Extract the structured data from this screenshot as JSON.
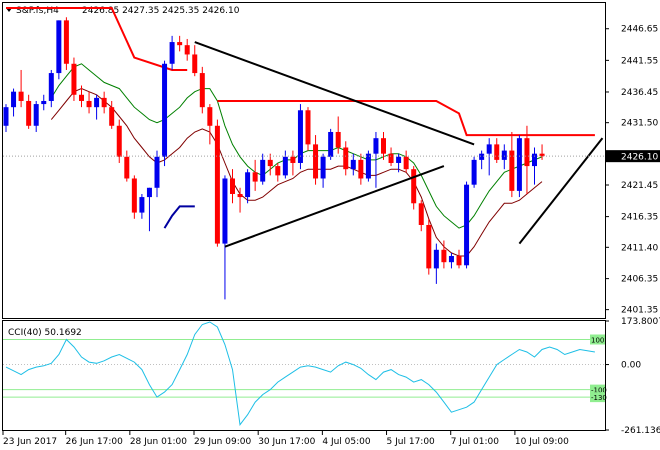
{
  "header": {
    "symbol": "S&P.fs,H4",
    "ohlc": "2426.85 2427.35 2425.35 2426.10"
  },
  "cci_panel": {
    "label": "CCI(40) 50.1692",
    "tick_labels": [
      "173.8007",
      "0.00",
      "-261.1364"
    ],
    "level_markers": [
      "100",
      "-100",
      "-130"
    ]
  },
  "colors": {
    "bull": "#0000ee",
    "bear": "#ff0000",
    "ma_green": "#008000",
    "ma_maroon": "#800000",
    "resistance": "#ff0000",
    "trendline": "#000000",
    "cci": "#1ebfe6",
    "cci_level": "#90ee90",
    "last_price_tag": "#000000"
  },
  "chart_data": [
    {
      "type": "candlestick",
      "title": "S&P.fs,H4",
      "x_ticks": [
        "23 Jun 2017",
        "26 Jun 17:00",
        "28 Jun 01:00",
        "29 Jun 09:00",
        "30 Jun 17:00",
        "4 Jul 05:00",
        "5 Jul 17:00",
        "7 Jul 01:00",
        "10 Jul 09:00"
      ],
      "y_ticks": [
        2401.35,
        2406.35,
        2411.4,
        2416.35,
        2421.45,
        2426.45,
        2431.5,
        2436.45,
        2441.55,
        2446.65
      ],
      "y_tick_labels": [
        "2401.35",
        "2406.35",
        "2411.40",
        "2416.35",
        "2421.45",
        "2426.45",
        "2431.50",
        "2436.45",
        "2441.55",
        "2446.65"
      ],
      "ylim": [
        2400.0,
        2450.8
      ],
      "grid": false,
      "last_price": 2426.1,
      "last_price_label": "2426.10",
      "candles": [
        [
          2431.0,
          2434.5,
          2430.0,
          2434.0
        ],
        [
          2434.0,
          2437.0,
          2432.5,
          2436.5
        ],
        [
          2436.5,
          2440.0,
          2434.0,
          2435.0
        ],
        [
          2435.0,
          2436.0,
          2430.5,
          2431.0
        ],
        [
          2431.0,
          2435.0,
          2430.0,
          2434.5
        ],
        [
          2434.5,
          2436.0,
          2433.5,
          2435.0
        ],
        [
          2435.0,
          2440.0,
          2434.0,
          2439.5
        ],
        [
          2439.5,
          2448.0,
          2438.5,
          2448.0
        ],
        [
          2448.0,
          2448.5,
          2440.0,
          2441.0
        ],
        [
          2441.0,
          2442.0,
          2435.0,
          2436.0
        ],
        [
          2436.0,
          2437.5,
          2434.0,
          2435.0
        ],
        [
          2435.0,
          2436.5,
          2433.0,
          2434.0
        ],
        [
          2434.0,
          2436.0,
          2432.0,
          2435.5
        ],
        [
          2435.5,
          2436.5,
          2433.0,
          2434.0
        ],
        [
          2434.0,
          2435.0,
          2430.5,
          2431.0
        ],
        [
          2431.0,
          2432.0,
          2425.0,
          2426.0
        ],
        [
          2426.0,
          2427.0,
          2422.0,
          2422.5
        ],
        [
          2422.5,
          2423.0,
          2416.0,
          2417.0
        ],
        [
          2417.0,
          2420.0,
          2416.0,
          2419.5
        ],
        [
          2419.5,
          2421.0,
          2414.0,
          2421.0
        ],
        [
          2421.0,
          2427.0,
          2419.5,
          2426.0
        ],
        [
          2426.0,
          2441.5,
          2424.5,
          2441.0
        ],
        [
          2441.0,
          2445.5,
          2440.0,
          2444.5
        ],
        [
          2444.5,
          2445.5,
          2443.0,
          2444.0
        ],
        [
          2444.0,
          2445.0,
          2441.5,
          2442.5
        ],
        [
          2442.5,
          2444.0,
          2439.0,
          2439.5
        ],
        [
          2439.5,
          2440.5,
          2433.0,
          2434.0
        ],
        [
          2434.0,
          2434.5,
          2428.0,
          2431.0
        ],
        [
          2431.0,
          2432.0,
          2411.5,
          2412.0
        ],
        [
          2412.0,
          2423.0,
          2403.0,
          2422.5
        ],
        [
          2422.5,
          2424.0,
          2418.5,
          2420.0
        ],
        [
          2420.0,
          2421.0,
          2417.0,
          2419.5
        ],
        [
          2419.5,
          2424.0,
          2418.5,
          2423.5
        ],
        [
          2423.5,
          2425.5,
          2420.5,
          2422.0
        ],
        [
          2422.0,
          2426.5,
          2421.5,
          2425.5
        ],
        [
          2425.5,
          2426.5,
          2423.0,
          2424.5
        ],
        [
          2424.5,
          2425.0,
          2422.0,
          2423.0
        ],
        [
          2423.0,
          2427.0,
          2422.5,
          2426.0
        ],
        [
          2426.0,
          2427.0,
          2423.0,
          2425.0
        ],
        [
          2425.0,
          2434.5,
          2424.0,
          2433.5
        ],
        [
          2433.5,
          2434.0,
          2427.0,
          2428.0
        ],
        [
          2428.0,
          2429.5,
          2421.5,
          2422.5
        ],
        [
          2422.5,
          2426.5,
          2421.0,
          2426.0
        ],
        [
          2426.0,
          2430.5,
          2425.5,
          2430.0
        ],
        [
          2430.0,
          2432.5,
          2426.5,
          2427.5
        ],
        [
          2427.5,
          2428.5,
          2423.0,
          2424.0
        ],
        [
          2424.0,
          2426.5,
          2423.0,
          2425.5
        ],
        [
          2425.5,
          2426.5,
          2421.5,
          2422.5
        ],
        [
          2422.5,
          2427.0,
          2422.0,
          2426.5
        ],
        [
          2426.5,
          2430.0,
          2421.0,
          2429.0
        ],
        [
          2429.0,
          2430.0,
          2425.5,
          2426.5
        ],
        [
          2426.5,
          2427.5,
          2424.5,
          2425.0
        ],
        [
          2425.0,
          2426.5,
          2423.5,
          2426.0
        ],
        [
          2426.0,
          2427.0,
          2423.5,
          2424.0
        ],
        [
          2424.0,
          2424.5,
          2417.5,
          2418.5
        ],
        [
          2418.5,
          2419.0,
          2414.0,
          2415.0
        ],
        [
          2415.0,
          2416.0,
          2407.0,
          2408.0
        ],
        [
          2408.0,
          2412.0,
          2405.5,
          2411.0
        ],
        [
          2411.0,
          2412.5,
          2408.0,
          2409.0
        ],
        [
          2409.0,
          2410.5,
          2408.0,
          2410.0
        ],
        [
          2410.0,
          2411.0,
          2408.0,
          2408.5
        ],
        [
          2408.5,
          2422.0,
          2408.0,
          2421.5
        ],
        [
          2421.5,
          2426.0,
          2421.0,
          2425.5
        ],
        [
          2425.5,
          2427.0,
          2424.0,
          2426.5
        ],
        [
          2426.5,
          2429.0,
          2423.0,
          2428.0
        ],
        [
          2428.0,
          2429.0,
          2425.0,
          2425.5
        ],
        [
          2425.5,
          2428.0,
          2424.0,
          2427.0
        ],
        [
          2427.0,
          2430.0,
          2419.5,
          2420.5
        ],
        [
          2420.5,
          2429.5,
          2419.5,
          2429.0
        ],
        [
          2429.0,
          2431.0,
          2420.0,
          2424.5
        ],
        [
          2424.5,
          2427.5,
          2421.5,
          2426.5
        ],
        [
          2426.5,
          2428.0,
          2425.5,
          2426.1
        ]
      ],
      "series": [
        {
          "name": "",
          "kind": "moving-average",
          "color": "#008000",
          "values": [
            null,
            null,
            null,
            null,
            null,
            null,
            2435.5,
            2437.5,
            2439,
            2440.5,
            2441,
            2440,
            2439,
            2438,
            2437.5,
            2437,
            2435.5,
            2434,
            2433,
            2432,
            2431.5,
            2432,
            2433,
            2434,
            2435.5,
            2436.5,
            2437,
            2437,
            2435,
            2431,
            2428,
            2426,
            2424.5,
            2423.5,
            2423,
            2424,
            2425,
            2425.5,
            2425.5,
            2426.5,
            2427,
            2427,
            2427,
            2427,
            2427.5,
            2427,
            2426.5,
            2426,
            2425.5,
            2425.5,
            2426,
            2426.5,
            2426.5,
            2426,
            2425,
            2423,
            2420.5,
            2418,
            2416.5,
            2415.5,
            2414.5,
            2415,
            2416.5,
            2418.5,
            2420.5,
            2422,
            2423.5,
            2424,
            2424.5,
            2425,
            2425.5,
            2426
          ]
        },
        {
          "name": "",
          "kind": "moving-average",
          "color": "#800000",
          "values": [
            null,
            null,
            null,
            null,
            null,
            null,
            2432,
            2433.5,
            2435,
            2436.5,
            2437,
            2436.5,
            2436,
            2435,
            2434,
            2432.5,
            2431,
            2429,
            2427.5,
            2426,
            2425,
            2425.5,
            2426.5,
            2427.5,
            2429,
            2430,
            2430.5,
            2430,
            2428,
            2425,
            2422,
            2420,
            2419,
            2419,
            2419.5,
            2420.5,
            2421.5,
            2422,
            2422.5,
            2423.5,
            2424,
            2424,
            2424,
            2424,
            2424.5,
            2424.5,
            2424,
            2423.5,
            2423,
            2423,
            2423.5,
            2424,
            2424,
            2423.5,
            2422,
            2419.5,
            2416,
            2413,
            2411.5,
            2410.5,
            2410,
            2410,
            2411.5,
            2413.5,
            2415.5,
            2417,
            2418.5,
            2418.5,
            2419,
            2420,
            2421,
            2422
          ]
        },
        {
          "name": "",
          "kind": "trailing-stop",
          "color": "#0000a0",
          "values": [
            null,
            null,
            null,
            null,
            null,
            null,
            null,
            null,
            null,
            null,
            null,
            null,
            null,
            null,
            null,
            null,
            null,
            null,
            null,
            null,
            null,
            2414.5,
            2416.5,
            2418,
            2418,
            2418,
            null,
            null,
            null,
            null,
            null,
            null,
            null,
            null,
            null,
            null,
            null,
            null,
            null,
            null,
            null,
            null,
            null,
            null,
            null,
            null,
            null,
            null,
            null,
            null,
            null,
            null,
            null,
            null,
            null,
            null,
            null,
            null,
            null,
            null,
            null,
            null,
            null,
            null,
            null,
            null,
            null,
            null,
            null,
            null,
            null,
            null
          ]
        }
      ],
      "resistance_levels": [
        {
          "name": "",
          "points": [
            [
              0,
              2450.0
            ],
            [
              7,
              2450.0
            ],
            [
              14,
              2450.0
            ],
            [
              17,
              2442
            ],
            [
              22,
              2440
            ],
            [
              24,
              2440
            ]
          ]
        },
        {
          "name": "",
          "points": [
            [
              28,
              2435.0
            ],
            [
              57,
              2435.0
            ],
            [
              60,
              2433
            ],
            [
              61,
              2429.5
            ],
            [
              78,
              2429.5
            ]
          ]
        }
      ],
      "trendlines": [
        {
          "name": "",
          "from": [
            25,
            2444.5
          ],
          "to": [
            62,
            2428.0
          ]
        },
        {
          "name": "",
          "from": [
            29,
            2411.5
          ],
          "to": [
            58,
            2424.5
          ]
        },
        {
          "name": "",
          "from": [
            68,
            2412.0
          ],
          "to": [
            79,
            2429.0
          ]
        }
      ]
    },
    {
      "type": "line",
      "title": "CCI(40) 50.1692",
      "ylim": [
        -261.1364,
        173.8007
      ],
      "y_ticks": [
        173.8007,
        0.0,
        -261.1364
      ],
      "levels": [
        100,
        -100,
        -130
      ],
      "grid": false,
      "series": [
        {
          "name": "",
          "values": [
            -10,
            -25,
            -40,
            -20,
            -10,
            -5,
            5,
            40,
            100,
            70,
            30,
            10,
            5,
            15,
            30,
            40,
            25,
            10,
            -20,
            -80,
            -130,
            -110,
            -80,
            -20,
            40,
            120,
            160,
            170,
            150,
            80,
            -20,
            -240,
            -200,
            -150,
            -120,
            -100,
            -70,
            -50,
            -30,
            -10,
            -5,
            -10,
            -20,
            -30,
            -5,
            10,
            0,
            -15,
            -40,
            -60,
            -30,
            -20,
            -40,
            -50,
            -70,
            -60,
            -80,
            -110,
            -150,
            -190,
            -180,
            -170,
            -150,
            -100,
            -50,
            0,
            20,
            40,
            60,
            50,
            30,
            60,
            70,
            60,
            40,
            50,
            60,
            55,
            50
          ]
        }
      ]
    }
  ]
}
